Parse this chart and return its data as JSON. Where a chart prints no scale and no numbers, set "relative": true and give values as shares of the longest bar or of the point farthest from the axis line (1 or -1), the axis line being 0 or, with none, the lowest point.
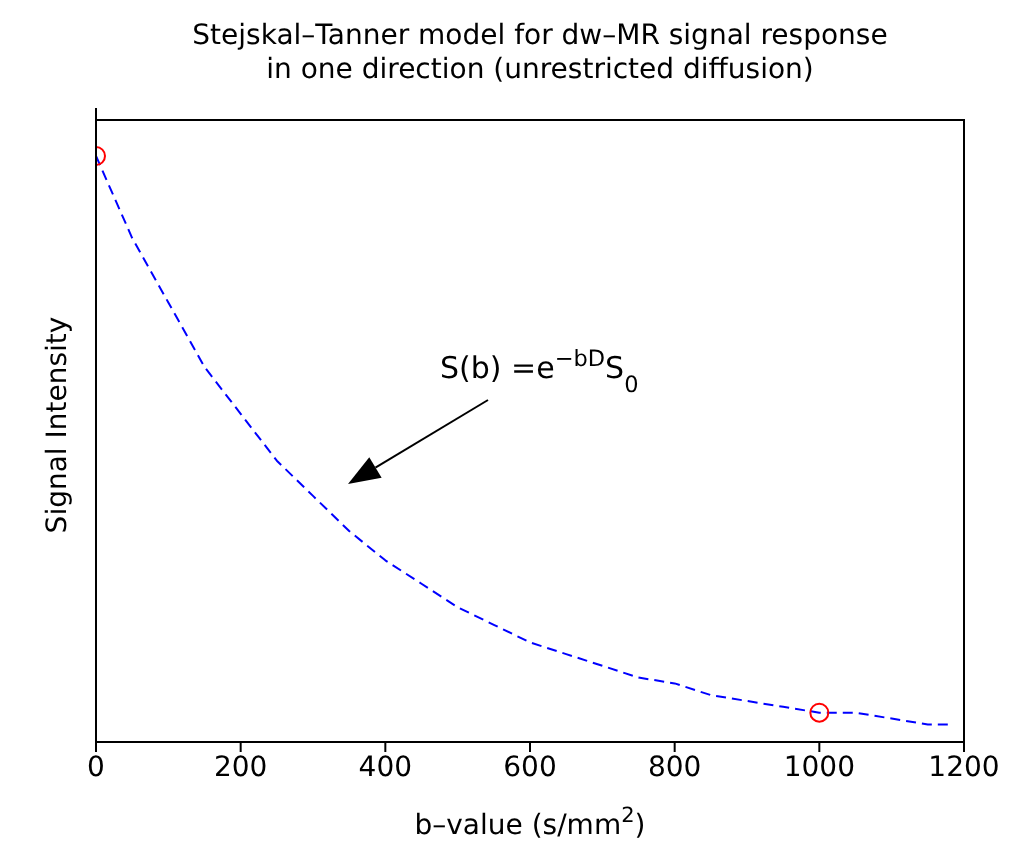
{
  "chart_data": {
    "type": "line",
    "title": "Stejskal–Tanner model for dw–MR signal response\nin one direction (unrestricted diffusion)",
    "xlabel": "b–value (s/mm$^{2}$)",
    "ylabel": "Signal Intensity",
    "relative": true,
    "tick_labels": "x",
    "xlim": [
      0,
      1200
    ],
    "xticks": [
      0,
      200,
      400,
      600,
      800,
      1000,
      1200
    ],
    "annotations": [
      "S(b) =e$^{−bD}$S$_{0}$"
    ],
    "series": [
      {
        "color": "#0000ff",
        "line_style": "dashed",
        "marker": "none",
        "x": [
          0,
          50,
          100,
          150,
          200,
          250,
          300,
          350,
          400,
          450,
          500,
          550,
          600,
          650,
          700,
          750,
          800,
          850,
          900,
          950,
          1000,
          1050,
          1100,
          1150,
          1180
        ],
        "values": [
          1,
          0.86,
          0.75,
          0.64,
          0.56,
          0.48,
          0.42,
          0.36,
          0.31,
          0.27,
          0.23,
          0.2,
          0.17,
          0.15,
          0.13,
          0.11,
          0.1,
          0.08,
          0.07,
          0.06,
          0.05,
          0.05,
          0.04,
          0.03,
          0.03
        ]
      },
      {
        "type": "scatter",
        "color": "#ff0000",
        "marker": "circle",
        "x": [
          0,
          1000
        ],
        "values": [
          1,
          0.05
        ]
      }
    ]
  }
}
